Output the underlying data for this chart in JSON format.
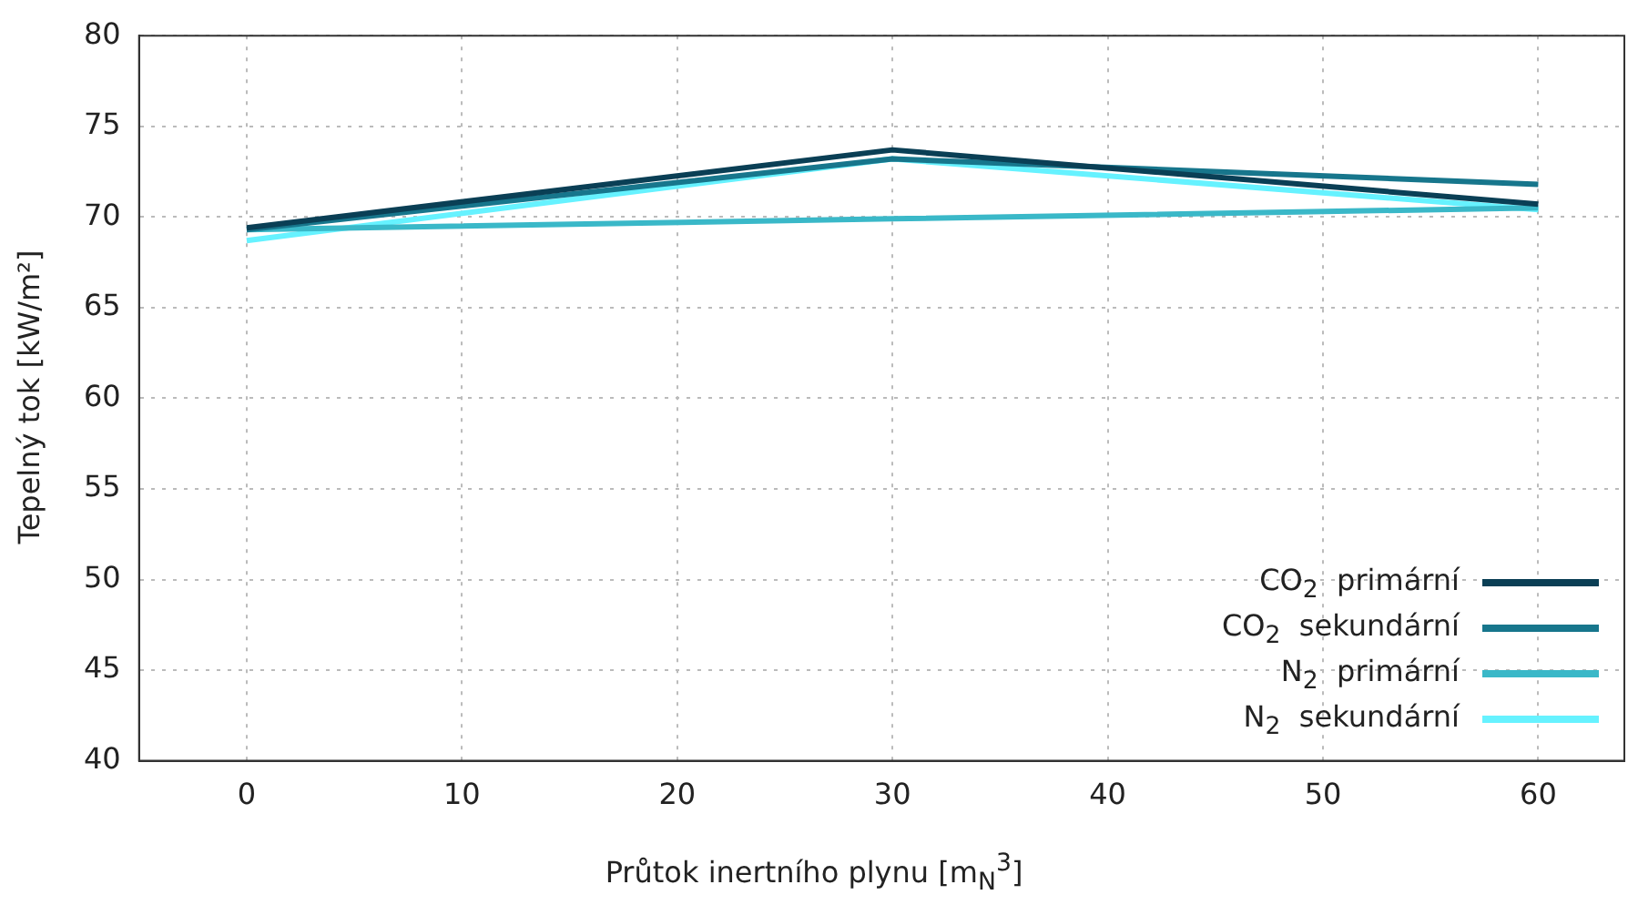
{
  "chart_data": {
    "type": "line",
    "xlabel": "Průtok inertního plynu [m$_{N}$$^{3}$]",
    "ylabel": "Tepelný tok [kW/m²]",
    "x": [
      0,
      30,
      60
    ],
    "xlim": [
      -5,
      64
    ],
    "xticks": [
      0,
      10,
      20,
      30,
      40,
      50,
      60
    ],
    "ylim": [
      40,
      80
    ],
    "yticks": [
      40,
      45,
      50,
      55,
      60,
      65,
      70,
      75,
      80
    ],
    "grid": true,
    "legend": "bottom right",
    "marker": "none",
    "line_style": "solid",
    "series": [
      {
        "name": "CO$_{2}$  primární",
        "color": "#0a3f55",
        "values": [
          69.4,
          73.7,
          70.7
        ]
      },
      {
        "name": "CO$_{2}$  sekundární",
        "color": "#17768c",
        "values": [
          69.3,
          73.2,
          71.8
        ]
      },
      {
        "name": "N$_{2}$  primární",
        "color": "#3ab8c8",
        "values": [
          69.3,
          69.9,
          70.5
        ]
      },
      {
        "name": "N$_{2}$  sekundární",
        "color": "#66f2ff",
        "values": [
          68.7,
          73.2,
          70.4
        ]
      }
    ]
  }
}
